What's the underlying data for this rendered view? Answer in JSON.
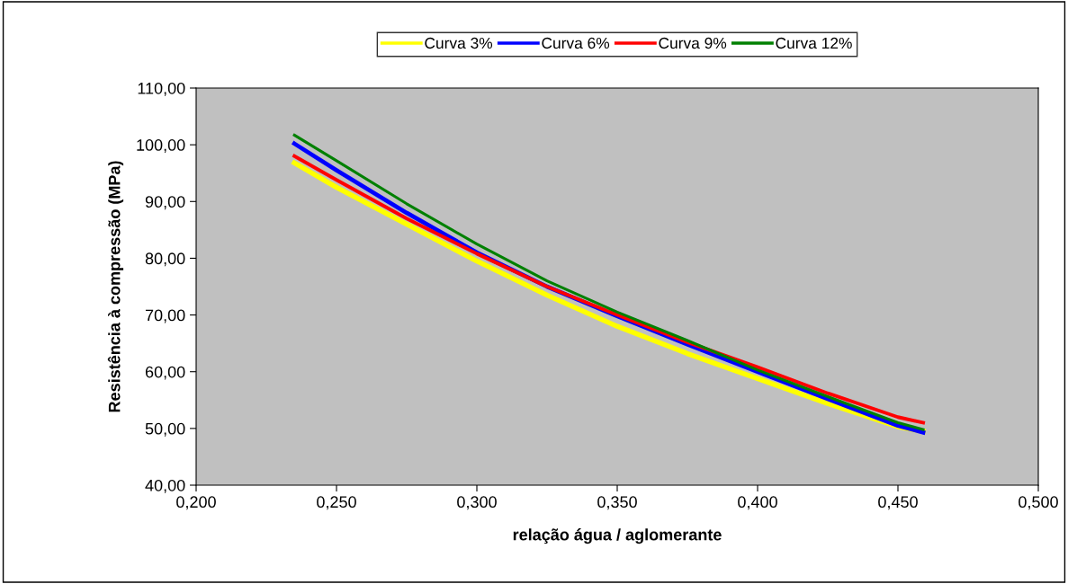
{
  "chart_data": {
    "type": "line",
    "xlabel": "relação água / aglomerante",
    "ylabel": "Resistência à compressão (MPa)",
    "x": [
      0.235,
      0.25,
      0.275,
      0.3,
      0.325,
      0.35,
      0.375,
      0.4,
      0.425,
      0.45,
      0.459
    ],
    "series": [
      {
        "name": "Curva 3%",
        "color": "#ffff00",
        "values": [
          96.8,
          92.5,
          86.0,
          79.5,
          73.5,
          68.0,
          63.2,
          58.8,
          54.4,
          50.3,
          49.5
        ]
      },
      {
        "name": "Curva 6%",
        "color": "#0000ff",
        "values": [
          100.2,
          95.5,
          88.0,
          81.0,
          75.0,
          69.8,
          64.8,
          60.0,
          55.2,
          50.5,
          49.3
        ]
      },
      {
        "name": "Curva 9%",
        "color": "#ff0000",
        "values": [
          98.0,
          93.8,
          87.0,
          80.8,
          75.0,
          70.0,
          65.2,
          60.8,
          56.2,
          52.0,
          51.0
        ]
      },
      {
        "name": "Curva 12%",
        "color": "#008000",
        "values": [
          101.7,
          97.2,
          89.6,
          82.5,
          76.0,
          70.5,
          65.5,
          60.3,
          55.6,
          51.0,
          49.8
        ]
      }
    ],
    "xlim": [
      0.2,
      0.5
    ],
    "xticks": [
      {
        "value": 0.2,
        "label": "0,200"
      },
      {
        "value": 0.25,
        "label": "0,250"
      },
      {
        "value": 0.3,
        "label": "0,300"
      },
      {
        "value": 0.35,
        "label": "0,350"
      },
      {
        "value": 0.4,
        "label": "0,400"
      },
      {
        "value": 0.45,
        "label": "0,450"
      },
      {
        "value": 0.5,
        "label": "0,500"
      }
    ],
    "ylim": [
      40,
      110
    ],
    "yticks": [
      {
        "value": 40,
        "label": "40,00"
      },
      {
        "value": 50,
        "label": "50,00"
      },
      {
        "value": 60,
        "label": "60,00"
      },
      {
        "value": 70,
        "label": "70,00"
      },
      {
        "value": 80,
        "label": "80,00"
      },
      {
        "value": 90,
        "label": "90,00"
      },
      {
        "value": 100,
        "label": "100,00"
      },
      {
        "value": 110,
        "label": "110,00"
      }
    ],
    "grid": false,
    "legend": "top",
    "marker": "none",
    "line_style": "solid"
  }
}
